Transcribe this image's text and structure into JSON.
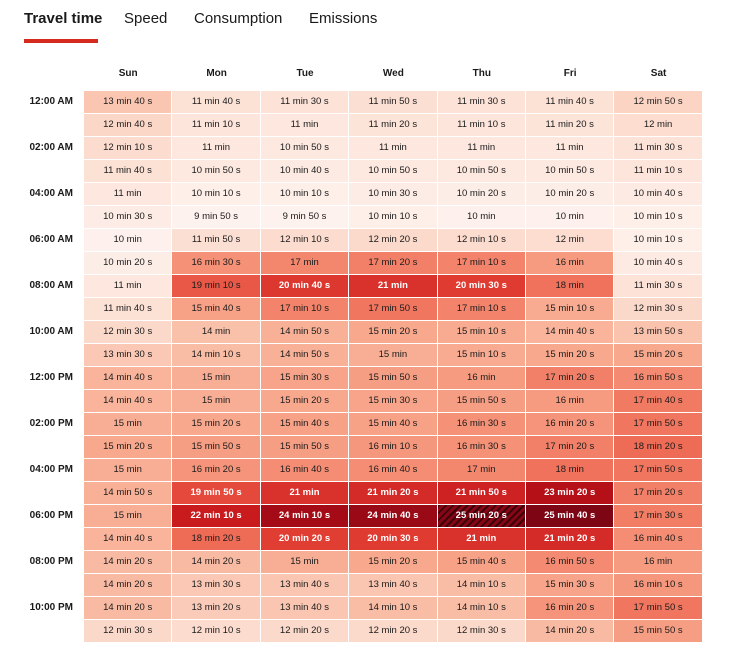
{
  "tabs": [
    {
      "label": "Travel time",
      "active": true
    },
    {
      "label": "Speed",
      "active": false
    },
    {
      "label": "Consumption",
      "active": false
    },
    {
      "label": "Emissions",
      "active": false
    }
  ],
  "days": [
    "Sun",
    "Mon",
    "Tue",
    "Wed",
    "Thu",
    "Fri",
    "Sat"
  ],
  "time_labels": [
    "12:00 AM",
    "",
    "02:00 AM",
    "",
    "04:00 AM",
    "",
    "06:00 AM",
    "",
    "08:00 AM",
    "",
    "10:00 AM",
    "",
    "12:00 PM",
    "",
    "02:00 PM",
    "",
    "04:00 PM",
    "",
    "06:00 PM",
    "",
    "08:00 PM",
    "",
    "10:00 PM",
    ""
  ],
  "colors": {
    "accent": "#d52b1e"
  },
  "rows": [
    [
      "13 min 40 s",
      "11 min 40 s",
      "11 min 30 s",
      "11 min 50 s",
      "11 min 30 s",
      "11 min 40 s",
      "12 min 50 s"
    ],
    [
      "12 min 40 s",
      "11 min 10 s",
      "11 min",
      "11 min 20 s",
      "11 min 10 s",
      "11 min 20 s",
      "12 min"
    ],
    [
      "12 min 10 s",
      "11 min",
      "10 min 50 s",
      "11 min",
      "11 min",
      "11 min",
      "11 min 30 s"
    ],
    [
      "11 min 40 s",
      "10 min 50 s",
      "10 min 40 s",
      "10 min 50 s",
      "10 min 50 s",
      "10 min 50 s",
      "11 min 10 s"
    ],
    [
      "11 min",
      "10 min 10 s",
      "10 min 10 s",
      "10 min 30 s",
      "10 min 20 s",
      "10 min 20 s",
      "10 min 40 s"
    ],
    [
      "10 min 30 s",
      "9 min 50 s",
      "9 min 50 s",
      "10 min 10 s",
      "10 min",
      "10 min",
      "10 min 10 s"
    ],
    [
      "10 min",
      "11 min 50 s",
      "12 min 10 s",
      "12 min 20 s",
      "12 min 10 s",
      "12 min",
      "10 min 10 s"
    ],
    [
      "10 min 20 s",
      "16 min 30 s",
      "17 min",
      "17 min 20 s",
      "17 min 10 s",
      "16 min",
      "10 min 40 s"
    ],
    [
      "11 min",
      "19 min 10 s",
      "20 min 40 s",
      "21 min",
      "20 min 30 s",
      "18 min",
      "11 min 30 s"
    ],
    [
      "11 min 40 s",
      "15 min 40 s",
      "17 min 10 s",
      "17 min 50 s",
      "17 min 10 s",
      "15 min 10 s",
      "12 min 30 s"
    ],
    [
      "12 min 30 s",
      "14 min",
      "14 min 50 s",
      "15 min 20 s",
      "15 min 10 s",
      "14 min 40 s",
      "13 min 50 s"
    ],
    [
      "13 min 30 s",
      "14 min 10 s",
      "14 min 50 s",
      "15 min",
      "15 min 10 s",
      "15 min 20 s",
      "15 min 20 s"
    ],
    [
      "14 min 40 s",
      "15 min",
      "15 min 30 s",
      "15 min 50 s",
      "16 min",
      "17 min 20 s",
      "16 min 50 s"
    ],
    [
      "14 min 40 s",
      "15 min",
      "15 min 20 s",
      "15 min 30 s",
      "15 min 50 s",
      "16 min",
      "17 min 40 s"
    ],
    [
      "15 min",
      "15 min 20 s",
      "15 min 40 s",
      "15 min 40 s",
      "16 min 30 s",
      "16 min 20 s",
      "17 min 50 s"
    ],
    [
      "15 min 20 s",
      "15 min 50 s",
      "15 min 50 s",
      "16 min 10 s",
      "16 min 30 s",
      "17 min 20 s",
      "18 min 20 s"
    ],
    [
      "15 min",
      "16 min 20 s",
      "16 min 40 s",
      "16 min 40 s",
      "17 min",
      "18 min",
      "17 min 50 s"
    ],
    [
      "14 min 50 s",
      "19 min 50 s",
      "21 min",
      "21 min 20 s",
      "21 min 50 s",
      "23 min 20 s",
      "17 min 20 s"
    ],
    [
      "15 min",
      "22 min 10 s",
      "24 min 10 s",
      "24 min 40 s",
      "25 min 20 s",
      "25 min 40 s",
      "17 min 30 s"
    ],
    [
      "14 min 40 s",
      "18 min 20 s",
      "20 min 20 s",
      "20 min 30 s",
      "21 min",
      "21 min 20 s",
      "16 min 40 s"
    ],
    [
      "14 min 20 s",
      "14 min 20 s",
      "15 min",
      "15 min 20 s",
      "15 min 40 s",
      "16 min 50 s",
      "16 min"
    ],
    [
      "14 min 20 s",
      "13 min 30 s",
      "13 min 40 s",
      "13 min 40 s",
      "14 min 10 s",
      "15 min 30 s",
      "16 min 10 s"
    ],
    [
      "14 min 20 s",
      "13 min 20 s",
      "13 min 40 s",
      "14 min 10 s",
      "14 min 10 s",
      "16 min 20 s",
      "17 min 50 s"
    ],
    [
      "12 min 30 s",
      "12 min 10 s",
      "12 min 20 s",
      "12 min 20 s",
      "12 min 30 s",
      "14 min 20 s",
      "15 min 50 s"
    ]
  ],
  "highlighted_cell": {
    "row": 18,
    "col": 4
  }
}
